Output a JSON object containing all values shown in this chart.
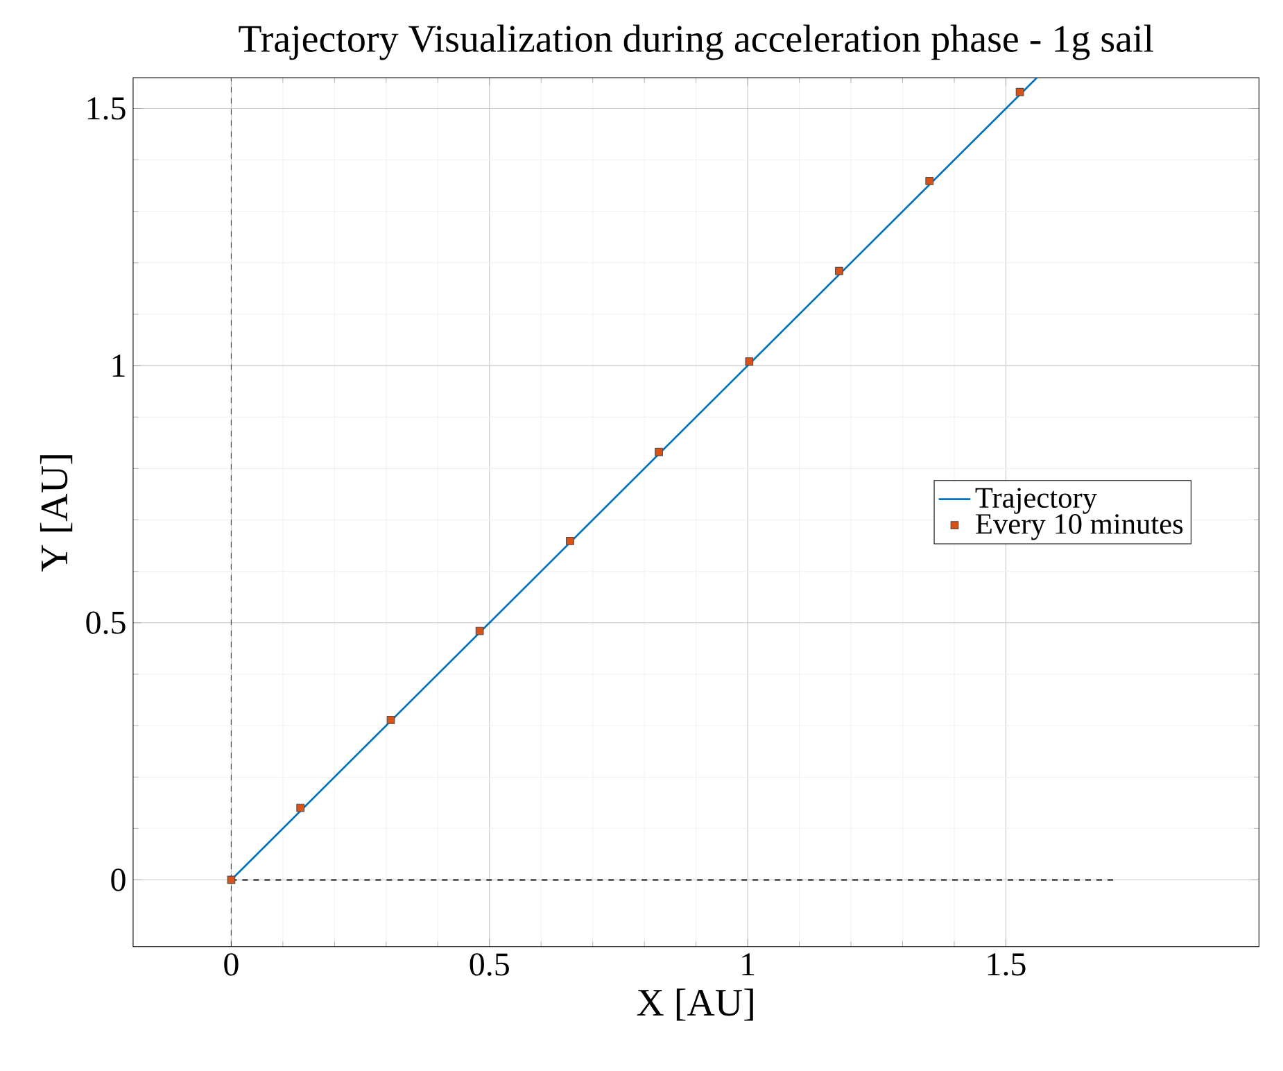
{
  "chart_data": {
    "type": "line",
    "title": "Trajectory Visualization during acceleration phase - 1g sail",
    "xlabel": "X [AU]",
    "ylabel": "Y [AU]",
    "xlim": [
      -0.19,
      1.99
    ],
    "ylim": [
      -0.13,
      1.56
    ],
    "xticks": [
      0,
      0.5,
      1,
      1.5
    ],
    "yticks": [
      0,
      0.5,
      1,
      1.5
    ],
    "grid": true,
    "legend": "right",
    "series": [
      {
        "name": "Trajectory",
        "color": "#0072bd",
        "x": [
          0,
          1.56
        ],
        "values": [
          0,
          1.56
        ]
      },
      {
        "name": "Every 10 minutes",
        "type": "scatter",
        "marker": "square",
        "color": "#d95319",
        "x": [
          0,
          0.134,
          0.309,
          0.481,
          0.656,
          0.828,
          1.003,
          1.177,
          1.352,
          1.527
        ],
        "values": [
          0,
          0.14,
          0.311,
          0.484,
          0.659,
          0.832,
          1.008,
          1.184,
          1.359,
          1.532
        ]
      },
      {
        "line_style": "dashed",
        "color": "#404040",
        "x": [
          0,
          1.71
        ],
        "values": [
          0,
          0
        ]
      }
    ],
    "ref_lines": [
      {
        "axis": "x",
        "value": 0,
        "color": "#404040",
        "line_style": "dashed"
      }
    ]
  }
}
